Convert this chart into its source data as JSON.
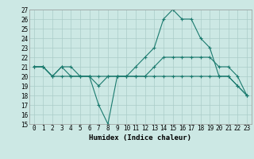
{
  "title": "",
  "xlabel": "Humidex (Indice chaleur)",
  "x_values": [
    0,
    1,
    2,
    3,
    4,
    5,
    6,
    7,
    8,
    9,
    10,
    11,
    12,
    13,
    14,
    15,
    16,
    17,
    18,
    19,
    20,
    21,
    22,
    23
  ],
  "line1": [
    21,
    21,
    20,
    21,
    21,
    20,
    20,
    17,
    15,
    20,
    20,
    21,
    22,
    23,
    26,
    27,
    26,
    26,
    24,
    23,
    20,
    20,
    19,
    18
  ],
  "line2": [
    21,
    21,
    20,
    21,
    20,
    20,
    20,
    19,
    20,
    20,
    20,
    20,
    20,
    21,
    22,
    22,
    22,
    22,
    22,
    22,
    21,
    21,
    20,
    18
  ],
  "line3": [
    21,
    21,
    20,
    20,
    20,
    20,
    20,
    20,
    20,
    20,
    20,
    20,
    20,
    20,
    20,
    20,
    20,
    20,
    20,
    20,
    20,
    20,
    19,
    18
  ],
  "line_color": "#1a7a6e",
  "background_color": "#cce8e4",
  "grid_color": "#aaccc8",
  "ylim": [
    15,
    27
  ],
  "yticks": [
    15,
    16,
    17,
    18,
    19,
    20,
    21,
    22,
    23,
    24,
    25,
    26,
    27
  ],
  "xticks": [
    0,
    1,
    2,
    3,
    4,
    5,
    6,
    7,
    8,
    9,
    10,
    11,
    12,
    13,
    14,
    15,
    16,
    17,
    18,
    19,
    20,
    21,
    22,
    23
  ],
  "marker": "+",
  "markersize": 3,
  "linewidth": 0.8,
  "tick_fontsize": 5.5,
  "xlabel_fontsize": 6.5
}
